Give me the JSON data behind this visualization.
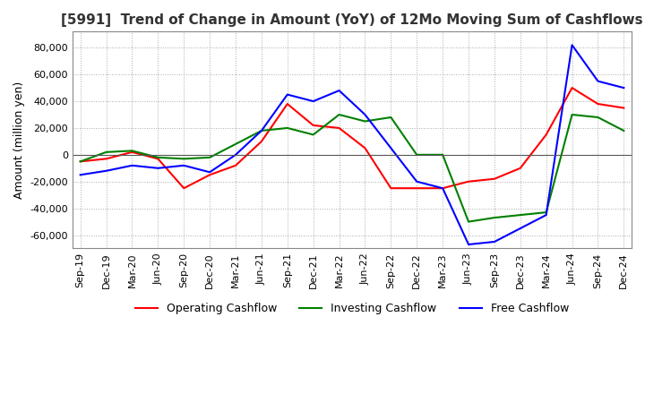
{
  "title": "[5991]  Trend of Change in Amount (YoY) of 12Mo Moving Sum of Cashflows",
  "ylabel": "Amount (million yen)",
  "ylim": [
    -70000,
    92000
  ],
  "yticks": [
    -60000,
    -40000,
    -20000,
    0,
    20000,
    40000,
    60000,
    80000
  ],
  "labels": [
    "Sep-19",
    "Dec-19",
    "Mar-20",
    "Jun-20",
    "Sep-20",
    "Dec-20",
    "Mar-21",
    "Jun-21",
    "Sep-21",
    "Dec-21",
    "Mar-22",
    "Jun-22",
    "Sep-22",
    "Dec-22",
    "Mar-23",
    "Jun-23",
    "Sep-23",
    "Dec-23",
    "Mar-24",
    "Jun-24",
    "Sep-24",
    "Dec-24"
  ],
  "operating": [
    -5000,
    -3000,
    2000,
    -3000,
    -25000,
    -15000,
    -8000,
    10000,
    38000,
    22000,
    20000,
    5000,
    -25000,
    -25000,
    -25000,
    -20000,
    -18000,
    -10000,
    15000,
    50000,
    38000,
    35000
  ],
  "investing": [
    -5000,
    2000,
    3000,
    -2000,
    -3000,
    -2000,
    8000,
    18000,
    20000,
    15000,
    30000,
    25000,
    28000,
    0,
    0,
    -50000,
    -47000,
    -45000,
    -43000,
    30000,
    28000,
    18000
  ],
  "free": [
    -15000,
    -12000,
    -8000,
    -10000,
    -8000,
    -13000,
    0,
    18000,
    45000,
    40000,
    48000,
    30000,
    5000,
    -20000,
    -25000,
    -67000,
    -65000,
    -55000,
    -45000,
    82000,
    55000,
    50000
  ],
  "operating_color": "#FF0000",
  "investing_color": "#008000",
  "free_color": "#0000FF",
  "background_color": "#FFFFFF",
  "grid_color": "#AAAAAA",
  "title_fontsize": 11,
  "legend_fontsize": 9,
  "tick_fontsize": 8
}
